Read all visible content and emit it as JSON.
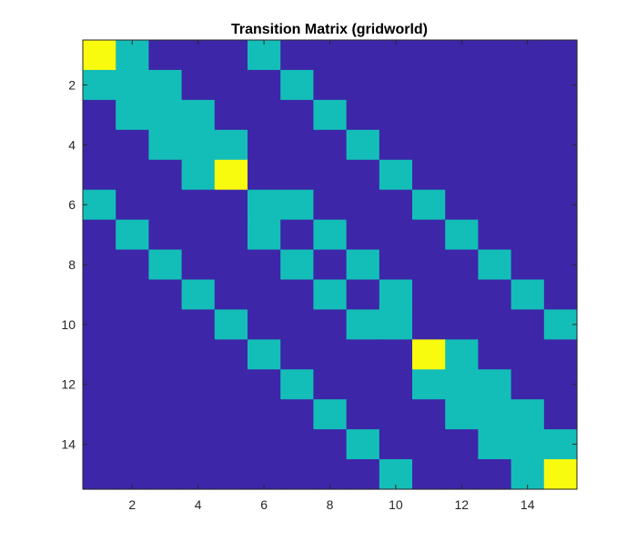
{
  "chart_data": {
    "type": "heatmap",
    "title": "Transition Matrix (gridworld)",
    "xlabel": "",
    "ylabel": "",
    "rows": 15,
    "cols": 15,
    "x_ticks": [
      2,
      4,
      6,
      8,
      10,
      12,
      14
    ],
    "y_ticks": [
      2,
      4,
      6,
      8,
      10,
      12,
      14
    ],
    "xlim": [
      0.5,
      15.5
    ],
    "ylim": [
      0.5,
      15.5
    ],
    "y_direction": "reverse",
    "colormap": "parula",
    "colors": {
      "low": "#3D26A8",
      "mid": "#14BEB8",
      "high": "#F9FB0E"
    },
    "values": [
      [
        1,
        0.5,
        0,
        0,
        0,
        0.5,
        0,
        0,
        0,
        0,
        0,
        0,
        0,
        0,
        0
      ],
      [
        0.5,
        0.5,
        0.5,
        0,
        0,
        0,
        0.5,
        0,
        0,
        0,
        0,
        0,
        0,
        0,
        0
      ],
      [
        0,
        0.5,
        0.5,
        0.5,
        0,
        0,
        0,
        0.5,
        0,
        0,
        0,
        0,
        0,
        0,
        0
      ],
      [
        0,
        0,
        0.5,
        0.5,
        0.5,
        0,
        0,
        0,
        0.5,
        0,
        0,
        0,
        0,
        0,
        0
      ],
      [
        0,
        0,
        0,
        0.5,
        1,
        0,
        0,
        0,
        0,
        0.5,
        0,
        0,
        0,
        0,
        0
      ],
      [
        0.5,
        0,
        0,
        0,
        0,
        0.5,
        0.5,
        0,
        0,
        0,
        0.5,
        0,
        0,
        0,
        0
      ],
      [
        0,
        0.5,
        0,
        0,
        0,
        0.5,
        0,
        0.5,
        0,
        0,
        0,
        0.5,
        0,
        0,
        0
      ],
      [
        0,
        0,
        0.5,
        0,
        0,
        0,
        0.5,
        0,
        0.5,
        0,
        0,
        0,
        0.5,
        0,
        0
      ],
      [
        0,
        0,
        0,
        0.5,
        0,
        0,
        0,
        0.5,
        0,
        0.5,
        0,
        0,
        0,
        0.5,
        0
      ],
      [
        0,
        0,
        0,
        0,
        0.5,
        0,
        0,
        0,
        0.5,
        0.5,
        0,
        0,
        0,
        0,
        0.5
      ],
      [
        0,
        0,
        0,
        0,
        0,
        0.5,
        0,
        0,
        0,
        0,
        1,
        0.5,
        0,
        0,
        0
      ],
      [
        0,
        0,
        0,
        0,
        0,
        0,
        0.5,
        0,
        0,
        0,
        0.5,
        0.5,
        0.5,
        0,
        0
      ],
      [
        0,
        0,
        0,
        0,
        0,
        0,
        0,
        0.5,
        0,
        0,
        0,
        0.5,
        0.5,
        0.5,
        0
      ],
      [
        0,
        0,
        0,
        0,
        0,
        0,
        0,
        0,
        0.5,
        0,
        0,
        0,
        0.5,
        0.5,
        0.5
      ],
      [
        0,
        0,
        0,
        0,
        0,
        0,
        0,
        0,
        0,
        0.5,
        0,
        0,
        0,
        0.5,
        1
      ]
    ]
  }
}
